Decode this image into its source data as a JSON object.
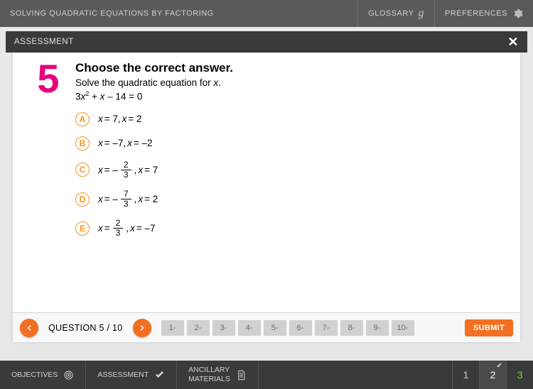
{
  "colors": {
    "accent_orange": "#f36f21",
    "accent_amber": "#f7941e",
    "accent_magenta": "#e6007e",
    "top_bar_bg": "#5a5a5a",
    "sub_bar_bg": "#3a3a3a",
    "pill_bg": "#d0d0d0"
  },
  "top": {
    "title": "SOLVING QUADRATIC EQUATIONS BY FACTORING",
    "glossary": "GLOSSARY",
    "preferences": "PREFERENCES"
  },
  "panel": {
    "label": "ASSESSMENT"
  },
  "question": {
    "number": "5",
    "instruction": "Choose the correct answer.",
    "prompt_prefix": "Solve the quadratic equation for ",
    "prompt_var": "x",
    "prompt_suffix": ".",
    "equation_html": "3<span class='ital'>x</span><sup>2</sup> + <span class='ital'>x</span> – 14 = 0",
    "choices": [
      {
        "letter": "A",
        "html": "<span class='ital'>x</span> = 7, <span class='ital'>x</span> = 2"
      },
      {
        "letter": "B",
        "html": "<span class='ital'>x</span> = –7, <span class='ital'>x</span> = –2"
      },
      {
        "letter": "C",
        "html": "<span class='ital'>x</span> = –<span class='frac'><span class='num'>2</span><span class='den'>3</span></span>, <span class='ital'>x</span> = 7"
      },
      {
        "letter": "D",
        "html": "<span class='ital'>x</span> = –<span class='frac'><span class='num'>7</span><span class='den'>3</span></span>, <span class='ital'>x</span> = 2"
      },
      {
        "letter": "E",
        "html": "<span class='ital'>x</span> = <span class='frac'><span class='num'>2</span><span class='den'>3</span></span>, <span class='ital'>x</span> = –7"
      }
    ]
  },
  "nav": {
    "counter": "QUESTION 5 / 10",
    "pills": [
      "1-",
      "2-",
      "3-",
      "4-",
      "5-",
      "6-",
      "7-",
      "8-",
      "9-",
      "10-"
    ],
    "submit": "SUBMIT"
  },
  "bottom_tabs": {
    "objectives": "OBJECTIVES",
    "assessment": "ASSESSMENT",
    "ancillary_l1": "ANCILLARY",
    "ancillary_l2": "MATERIALS"
  },
  "pages": [
    {
      "num": "1",
      "state": "normal"
    },
    {
      "num": "2",
      "state": "active",
      "check": true
    },
    {
      "num": "3",
      "state": "done"
    }
  ]
}
